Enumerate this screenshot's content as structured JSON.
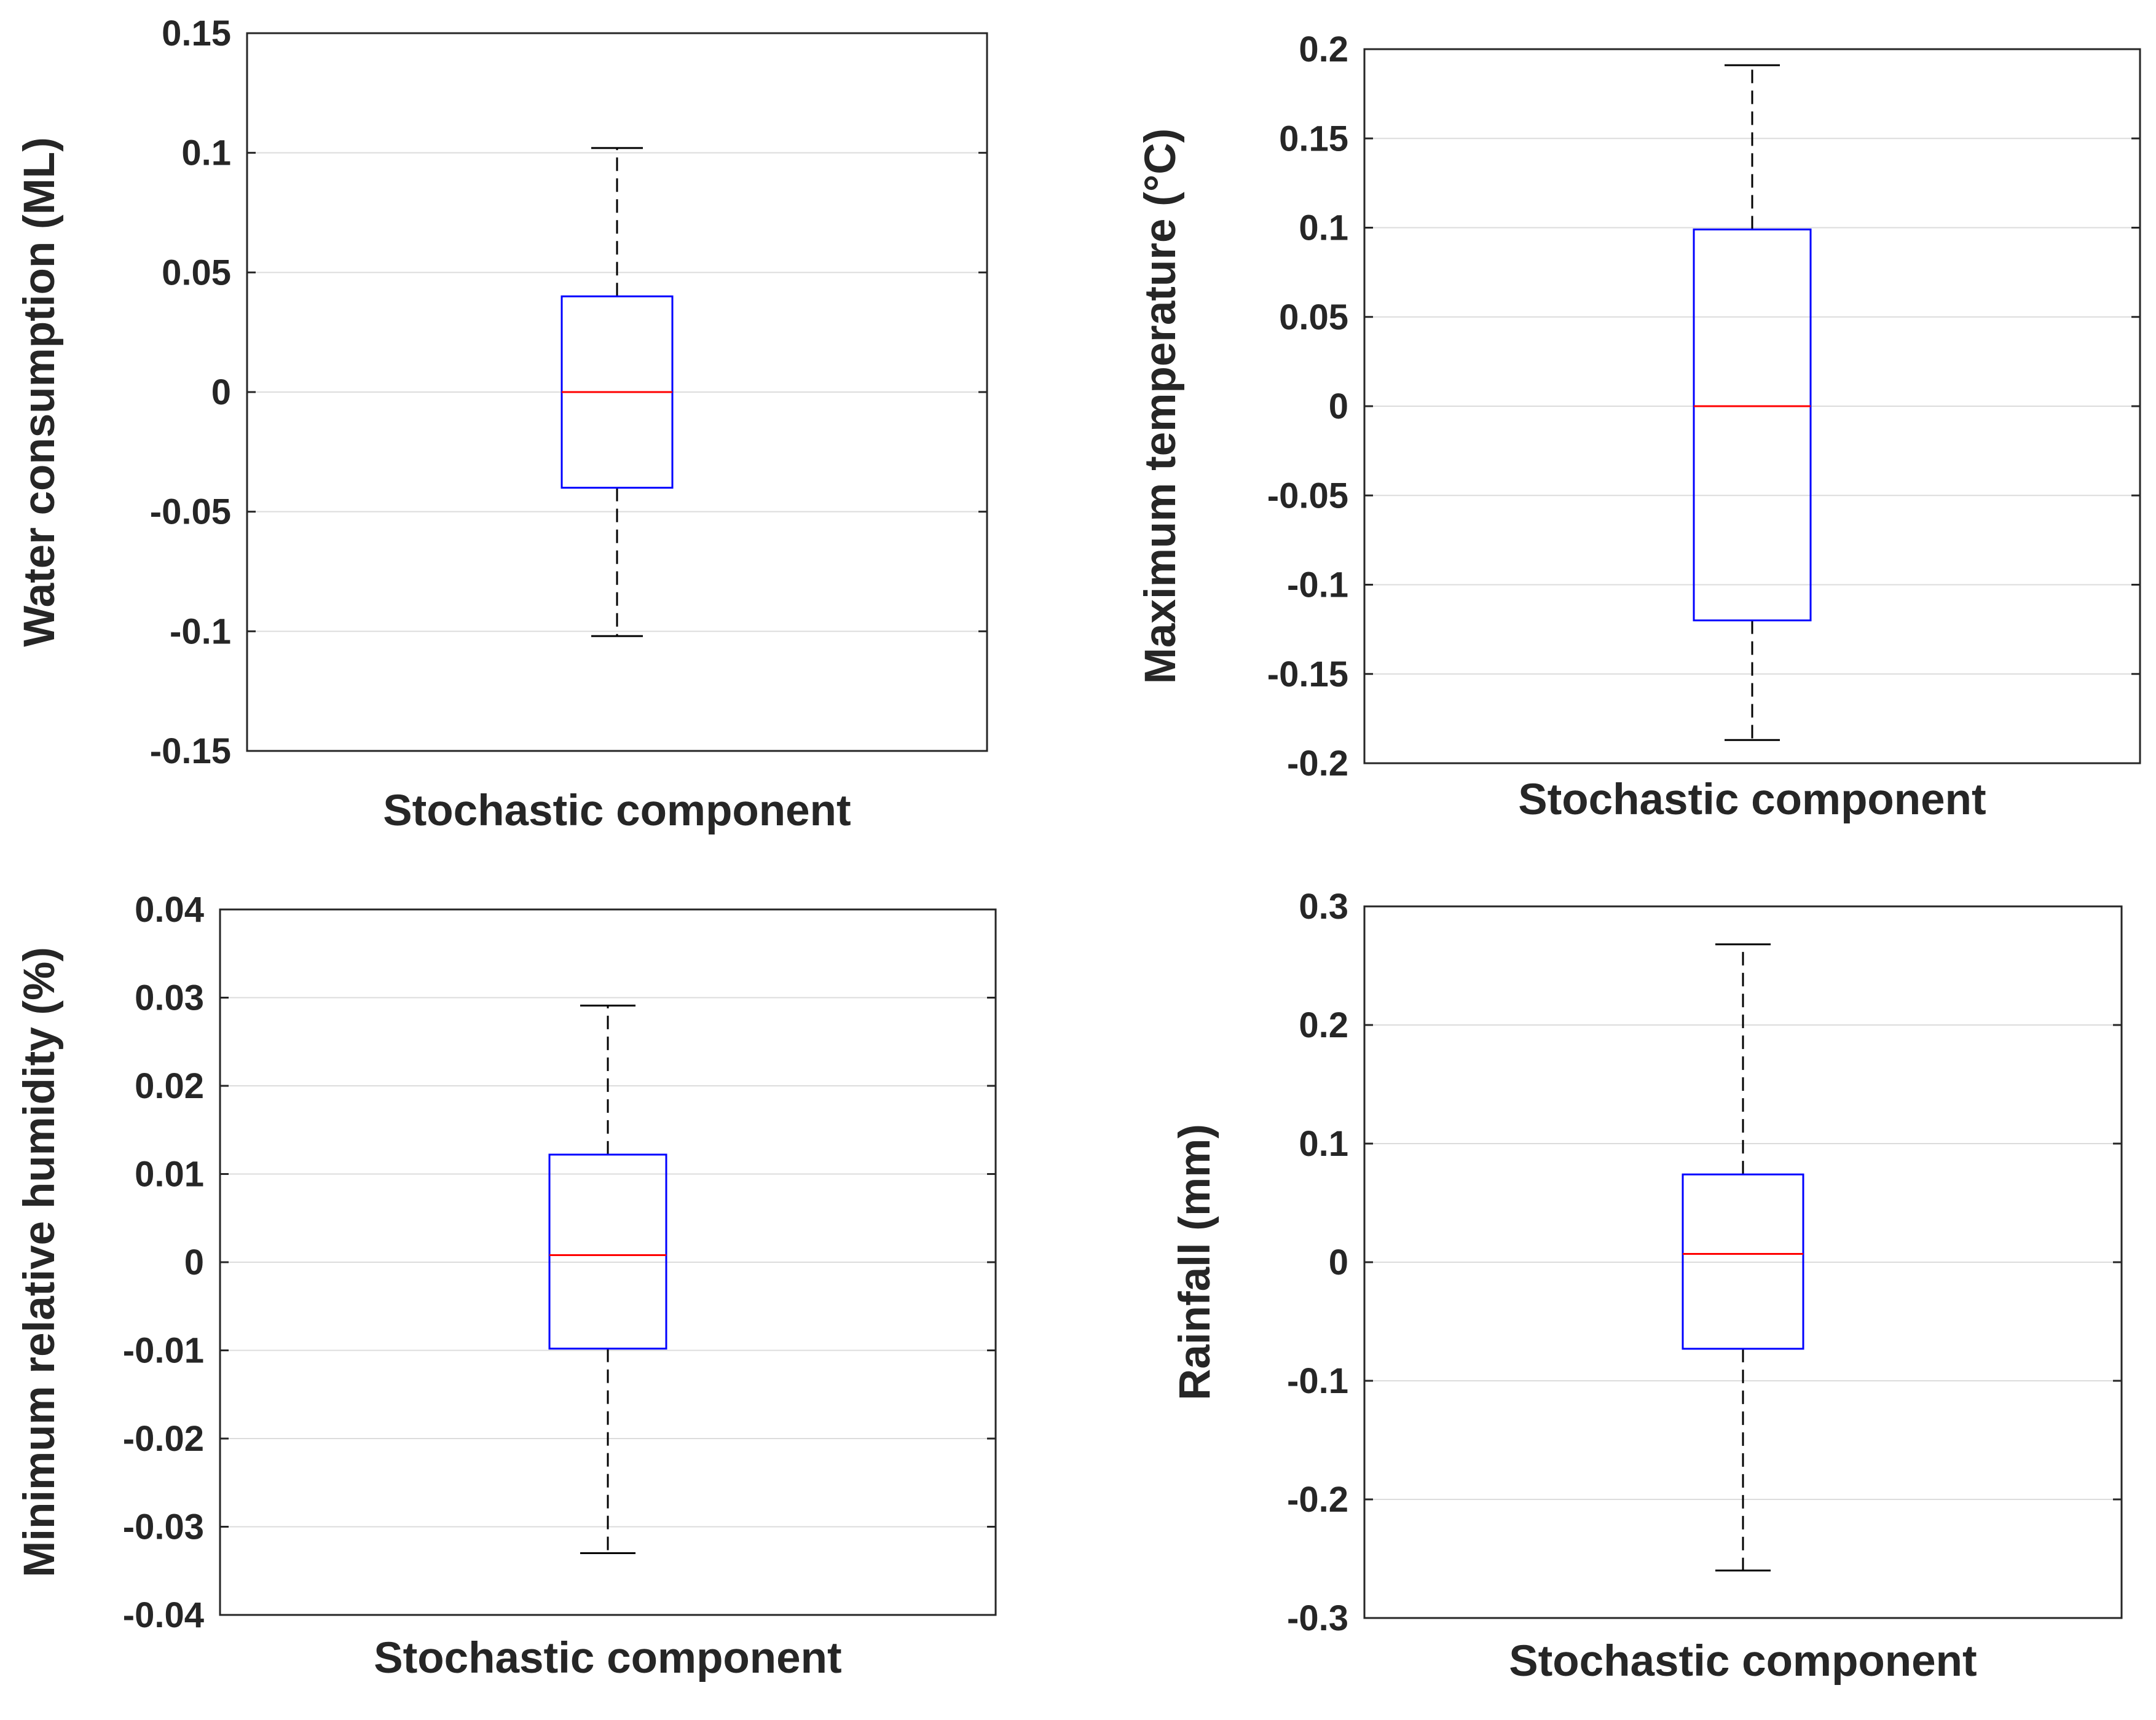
{
  "colors": {
    "box": "#0000ff",
    "median": "#ff0000",
    "whisker": "#000000",
    "grid": "#dcdcdc",
    "axis": "#262626"
  },
  "chart_data": [
    {
      "type": "box",
      "panel": "top-left",
      "xlabel": "Stochastic component",
      "ylabel": "Water consumption (ML)",
      "ylim": [
        -0.15,
        0.15
      ],
      "yticks": [
        -0.15,
        -0.1,
        -0.05,
        0,
        0.05,
        0.1,
        0.15
      ],
      "yticklabels": [
        "-0.15",
        "-0.1",
        "-0.05",
        "0",
        "0.05",
        "0.1",
        "0.15"
      ],
      "grid": true,
      "box": {
        "min": -0.102,
        "q1": -0.04,
        "median": 0.0,
        "q3": 0.04,
        "max": 0.102
      }
    },
    {
      "type": "box",
      "panel": "top-right",
      "xlabel": "Stochastic component",
      "ylabel": "Maximum temperature (°C)",
      "ylim": [
        -0.2,
        0.2
      ],
      "yticks": [
        -0.2,
        -0.15,
        -0.1,
        -0.05,
        0,
        0.05,
        0.1,
        0.15,
        0.2
      ],
      "yticklabels": [
        "-0.2",
        "-0.15",
        "-0.1",
        "-0.05",
        "0",
        "0.05",
        "0.1",
        "0.15",
        "0.2"
      ],
      "grid": true,
      "box": {
        "min": -0.187,
        "q1": -0.12,
        "median": 0.0,
        "q3": 0.099,
        "max": 0.191
      }
    },
    {
      "type": "box",
      "panel": "bottom-left",
      "xlabel": "Stochastic component",
      "ylabel": "Minimum relative humidity (%)",
      "ylim": [
        -0.04,
        0.04
      ],
      "yticks": [
        -0.04,
        -0.03,
        -0.02,
        -0.01,
        0,
        0.01,
        0.02,
        0.03,
        0.04
      ],
      "yticklabels": [
        "-0.04",
        "-0.03",
        "-0.02",
        "-0.01",
        "0",
        "0.01",
        "0.02",
        "0.03",
        "0.04"
      ],
      "grid": true,
      "box": {
        "min": -0.033,
        "q1": -0.0098,
        "median": 0.0008,
        "q3": 0.0122,
        "max": 0.0291
      }
    },
    {
      "type": "box",
      "panel": "bottom-right",
      "xlabel": "Stochastic component",
      "ylabel": "Rainfall (mm)",
      "ylim": [
        -0.3,
        0.3
      ],
      "yticks": [
        -0.3,
        -0.2,
        -0.1,
        0,
        0.1,
        0.2,
        0.3
      ],
      "yticklabels": [
        "-0.3",
        "-0.2",
        "-0.1",
        "0",
        "0.1",
        "0.2",
        "0.3"
      ],
      "grid": true,
      "box": {
        "min": -0.26,
        "q1": -0.073,
        "median": 0.007,
        "q3": 0.074,
        "max": 0.268
      }
    }
  ]
}
